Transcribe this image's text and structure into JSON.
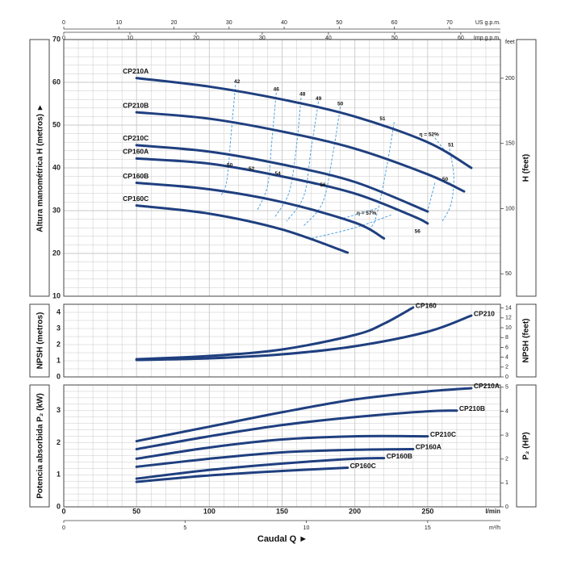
{
  "chart_data": {
    "type": "line",
    "colors": {
      "curve": "#1f3f7f",
      "efficiency": "#4fa3e0",
      "grid": "#c8c8c8",
      "frame": "#444444"
    },
    "top_axes": {
      "us_gpm": {
        "label": "US g.p.m.",
        "ticks": [
          0,
          10,
          20,
          30,
          40,
          50,
          60,
          70
        ]
      },
      "imp_gpm": {
        "label": "Imp g.p.m.",
        "ticks": [
          0,
          10,
          20,
          30,
          40,
          50,
          60
        ]
      }
    },
    "x": {
      "label": "l/min",
      "ticks": [
        0,
        50,
        100,
        150,
        200,
        250
      ],
      "lim": [
        0,
        300
      ]
    },
    "x_m3h": {
      "label": "m³/h",
      "ticks": [
        0,
        5,
        10,
        15
      ]
    },
    "xlabel": "Caudal Q",
    "head": {
      "ylabel": "Altura manométrica H  (metros)",
      "ylabel_right": "H (feet)",
      "ylim": [
        10,
        70
      ],
      "yticks": [
        10,
        20,
        30,
        40,
        50,
        60,
        70
      ],
      "yticks_feet": [
        50,
        100,
        150,
        200
      ],
      "feet_unit": "feet",
      "series": [
        {
          "name": "CP210A",
          "x": [
            50,
            100,
            150,
            200,
            250,
            280
          ],
          "y": [
            61,
            59,
            56,
            52,
            46,
            40
          ]
        },
        {
          "name": "CP210B",
          "x": [
            50,
            100,
            150,
            200,
            250,
            275
          ],
          "y": [
            53,
            51.5,
            48.5,
            44.5,
            38.5,
            34.5
          ]
        },
        {
          "name": "CP210C",
          "x": [
            50,
            100,
            150,
            200,
            250
          ],
          "y": [
            45.3,
            43.8,
            40.8,
            36.7,
            29.8
          ]
        },
        {
          "name": "CP160A",
          "x": [
            50,
            100,
            150,
            200,
            240,
            250
          ],
          "y": [
            42.2,
            41,
            38,
            34,
            28.7,
            27
          ]
        },
        {
          "name": "CP160B",
          "x": [
            50,
            100,
            150,
            200,
            220
          ],
          "y": [
            36.5,
            35,
            32,
            27.2,
            23.5
          ]
        },
        {
          "name": "CP160C",
          "x": [
            50,
            100,
            150,
            195
          ],
          "y": [
            31.2,
            29.3,
            25.6,
            20.2
          ]
        }
      ],
      "efficiency": [
        {
          "label": "42",
          "x": [
            118,
            115,
            112,
            108
          ],
          "y": [
            59.4,
            48,
            37,
            33.5
          ]
        },
        {
          "label": "46",
          "x": [
            146,
            143,
            140,
            133
          ],
          "y": [
            57.6,
            46.5,
            35.8,
            30.1
          ]
        },
        {
          "label": "48",
          "x": [
            163,
            160,
            155,
            145
          ],
          "y": [
            56.4,
            45.5,
            34.5,
            28.5
          ]
        },
        {
          "label": "49",
          "x": [
            175,
            170,
            165,
            153
          ],
          "y": [
            55.5,
            44.5,
            33.5,
            27.5
          ]
        },
        {
          "label": "50",
          "x": [
            190,
            185,
            178,
            165
          ],
          "y": [
            54.3,
            43.5,
            32,
            26.5
          ]
        },
        {
          "label": "51",
          "x": [
            227,
            222,
            215,
            210
          ],
          "y": [
            50.7,
            40.5,
            29,
            25.5
          ]
        },
        {
          "label": "η = 52%",
          "x": [
            255,
            263
          ],
          "y": [
            47,
            43.5
          ]
        },
        {
          "label": "51",
          "x": [
            265,
            268,
            266,
            260
          ],
          "y": [
            44.5,
            38,
            31.5,
            27.5
          ]
        },
        {
          "label": "50",
          "x": [
            255,
            250
          ],
          "y": [
            36.5,
            30
          ]
        },
        {
          "label": "56",
          "x": [
            225,
            200,
            170
          ],
          "y": [
            29,
            26,
            23.5
          ]
        },
        {
          "label": "η = 57%",
          "x": [
            215,
            190
          ],
          "y": [
            30.5,
            28
          ]
        }
      ],
      "efficiency_labels": [
        {
          "text": "42",
          "x": 119,
          "y": 60.1
        },
        {
          "text": "46",
          "x": 146,
          "y": 58.3
        },
        {
          "text": "48",
          "x": 164,
          "y": 57.2
        },
        {
          "text": "49",
          "x": 175,
          "y": 56.2
        },
        {
          "text": "50",
          "x": 190,
          "y": 54.9
        },
        {
          "text": "51",
          "x": 219,
          "y": 51.5
        },
        {
          "text": "η = 52%",
          "x": 251,
          "y": 47.8
        },
        {
          "text": "51",
          "x": 266,
          "y": 45.3
        },
        {
          "text": "50",
          "x": 262,
          "y": 37.3
        },
        {
          "text": "50",
          "x": 114,
          "y": 40.6
        },
        {
          "text": "52",
          "x": 129,
          "y": 39.8
        },
        {
          "text": "54",
          "x": 147,
          "y": 38.6
        },
        {
          "text": "56",
          "x": 178,
          "y": 36.0
        },
        {
          "text": "η = 57%",
          "x": 208,
          "y": 29.4
        },
        {
          "text": "56",
          "x": 243,
          "y": 25.1
        }
      ]
    },
    "npsh": {
      "ylabel": "NPSH (metros)",
      "ylabel_right": "NPSH (feet)",
      "ylim": [
        0,
        4.5
      ],
      "yticks": [
        0,
        1,
        2,
        3,
        4
      ],
      "yticks_feet": [
        0,
        2,
        4,
        6,
        8,
        10,
        12,
        14
      ],
      "series": [
        {
          "name": "CP160",
          "x": [
            50,
            100,
            150,
            200,
            220,
            240
          ],
          "y": [
            1.1,
            1.3,
            1.7,
            2.6,
            3.3,
            4.3
          ]
        },
        {
          "name": "CP210",
          "x": [
            50,
            100,
            150,
            200,
            250,
            280
          ],
          "y": [
            1.05,
            1.15,
            1.4,
            1.9,
            2.8,
            3.8
          ]
        }
      ]
    },
    "power": {
      "ylabel": "Potencia absorbida  P₂  (kW)",
      "ylabel_right": "P₂ (HP)",
      "ylim": [
        0,
        3.8
      ],
      "yticks": [
        0,
        1,
        2,
        3
      ],
      "yticks_hp": [
        0,
        1,
        2,
        3,
        4,
        5
      ],
      "series": [
        {
          "name": "CP210A",
          "x": [
            50,
            100,
            150,
            200,
            250,
            280
          ],
          "y": [
            2.05,
            2.5,
            2.95,
            3.35,
            3.6,
            3.7
          ]
        },
        {
          "name": "CP210B",
          "x": [
            50,
            100,
            150,
            200,
            250,
            270
          ],
          "y": [
            1.8,
            2.2,
            2.55,
            2.8,
            2.98,
            3.0
          ]
        },
        {
          "name": "CP210C",
          "x": [
            50,
            100,
            150,
            200,
            250
          ],
          "y": [
            1.5,
            1.85,
            2.1,
            2.2,
            2.2
          ]
        },
        {
          "name": "CP160A",
          "x": [
            50,
            100,
            150,
            200,
            240
          ],
          "y": [
            1.25,
            1.5,
            1.7,
            1.78,
            1.8
          ]
        },
        {
          "name": "CP160B",
          "x": [
            50,
            100,
            150,
            200,
            220
          ],
          "y": [
            0.88,
            1.15,
            1.35,
            1.5,
            1.52
          ]
        },
        {
          "name": "CP160C",
          "x": [
            50,
            100,
            150,
            195
          ],
          "y": [
            0.78,
            0.98,
            1.12,
            1.22
          ]
        }
      ]
    }
  }
}
